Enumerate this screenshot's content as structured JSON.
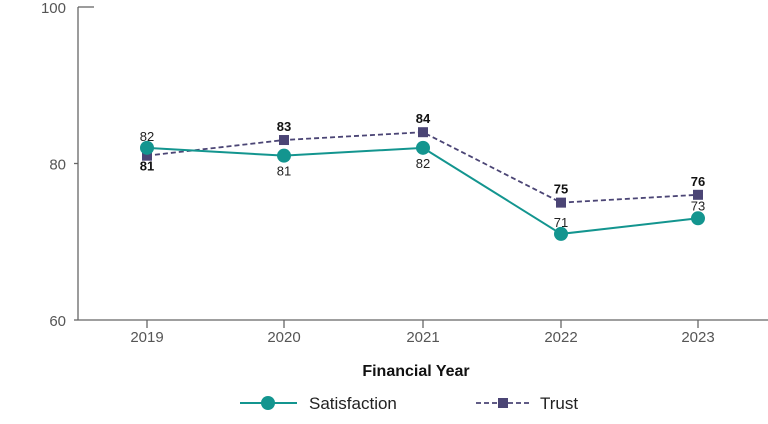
{
  "chart_data": {
    "type": "line",
    "title": "",
    "xlabel": "Financial Year",
    "ylabel": "",
    "categories": [
      "2019",
      "2020",
      "2021",
      "2022",
      "2023"
    ],
    "ylim": [
      60,
      100
    ],
    "yticks": [
      60,
      80,
      100
    ],
    "grid": false,
    "legend_position": "bottom",
    "series": [
      {
        "name": "Satisfaction",
        "values": [
          82,
          81,
          82,
          71,
          73
        ],
        "color": "#13958f",
        "marker": "circle",
        "style": "solid"
      },
      {
        "name": "Trust",
        "values": [
          81,
          83,
          84,
          75,
          76
        ],
        "color": "#4b4575",
        "marker": "square",
        "style": "dashed"
      }
    ]
  }
}
